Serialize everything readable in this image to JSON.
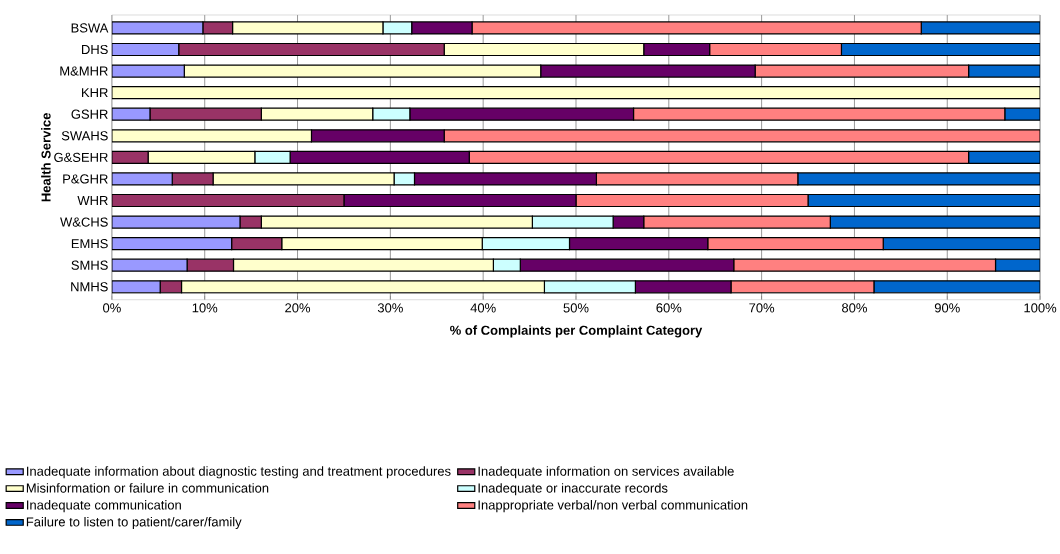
{
  "chart_data": {
    "type": "bar",
    "orientation": "horizontal",
    "stacked": true,
    "xlabel": "% of Complaints per Complaint Category",
    "ylabel": "Health Service",
    "categories": [
      "BSWA",
      "DHS",
      "M&MHR",
      "KHR",
      "GSHR",
      "SWAHS",
      "G&SEHR",
      "P&GHR",
      "WHR",
      "W&CHS",
      "EMHS",
      "SMHS",
      "NMHS"
    ],
    "series": [
      {
        "name": "Inadequate information about diagnostic testing and treatment procedures",
        "color": "#9999ff",
        "values": [
          9.8,
          7.2,
          7.8,
          0,
          4.1,
          0,
          0,
          6.5,
          0,
          13.8,
          12.9,
          8.1,
          5.2
        ]
      },
      {
        "name": "Inadequate information on services available",
        "color": "#993366",
        "values": [
          3.2,
          28.6,
          0,
          0,
          12.0,
          0,
          3.9,
          4.4,
          25,
          2.3,
          5.4,
          5.0,
          2.3
        ]
      },
      {
        "name": "Misinformation or failure in communication",
        "color": "#ffffcc",
        "values": [
          16.2,
          21.5,
          38.4,
          100,
          12.0,
          21.5,
          11.5,
          19.5,
          0,
          29.2,
          21.6,
          28.0,
          39.1
        ]
      },
      {
        "name": "Inadequate or inaccurate records",
        "color": "#ccffff",
        "values": [
          3.1,
          0,
          0,
          0,
          4.0,
          0,
          3.8,
          2.2,
          0,
          8.7,
          9.4,
          2.9,
          9.8
        ]
      },
      {
        "name": "Inadequate communication",
        "color": "#660066",
        "values": [
          6.5,
          7.1,
          23.1,
          0,
          24.1,
          14.3,
          19.3,
          19.6,
          25,
          3.3,
          14.9,
          23.0,
          10.3
        ]
      },
      {
        "name": "Inappropriate verbal/non verbal communication",
        "color": "#ff8080",
        "values": [
          48.4,
          14.2,
          23.0,
          0,
          40.0,
          64.2,
          53.8,
          21.7,
          25,
          20.1,
          18.9,
          28.2,
          15.4
        ]
      },
      {
        "name": "Failure to listen to patient/carer/family",
        "color": "#0066cc",
        "values": [
          12.8,
          21.4,
          7.7,
          0,
          3.8,
          0,
          7.7,
          26.1,
          25,
          22.6,
          16.9,
          4.8,
          17.9
        ]
      }
    ],
    "xlim": [
      0,
      100
    ],
    "xticks": [
      {
        "value": 0,
        "label": "0%"
      },
      {
        "value": 10,
        "label": "10%"
      },
      {
        "value": 20,
        "label": "20%"
      },
      {
        "value": 30,
        "label": "30%"
      },
      {
        "value": 40,
        "label": "40%"
      },
      {
        "value": 50,
        "label": "50%"
      },
      {
        "value": 60,
        "label": "60%"
      },
      {
        "value": 70,
        "label": "70%"
      },
      {
        "value": 80,
        "label": "80%"
      },
      {
        "value": 90,
        "label": "90%"
      },
      {
        "value": 100,
        "label": "100%"
      }
    ],
    "grid": "x",
    "legend": "bottom"
  }
}
